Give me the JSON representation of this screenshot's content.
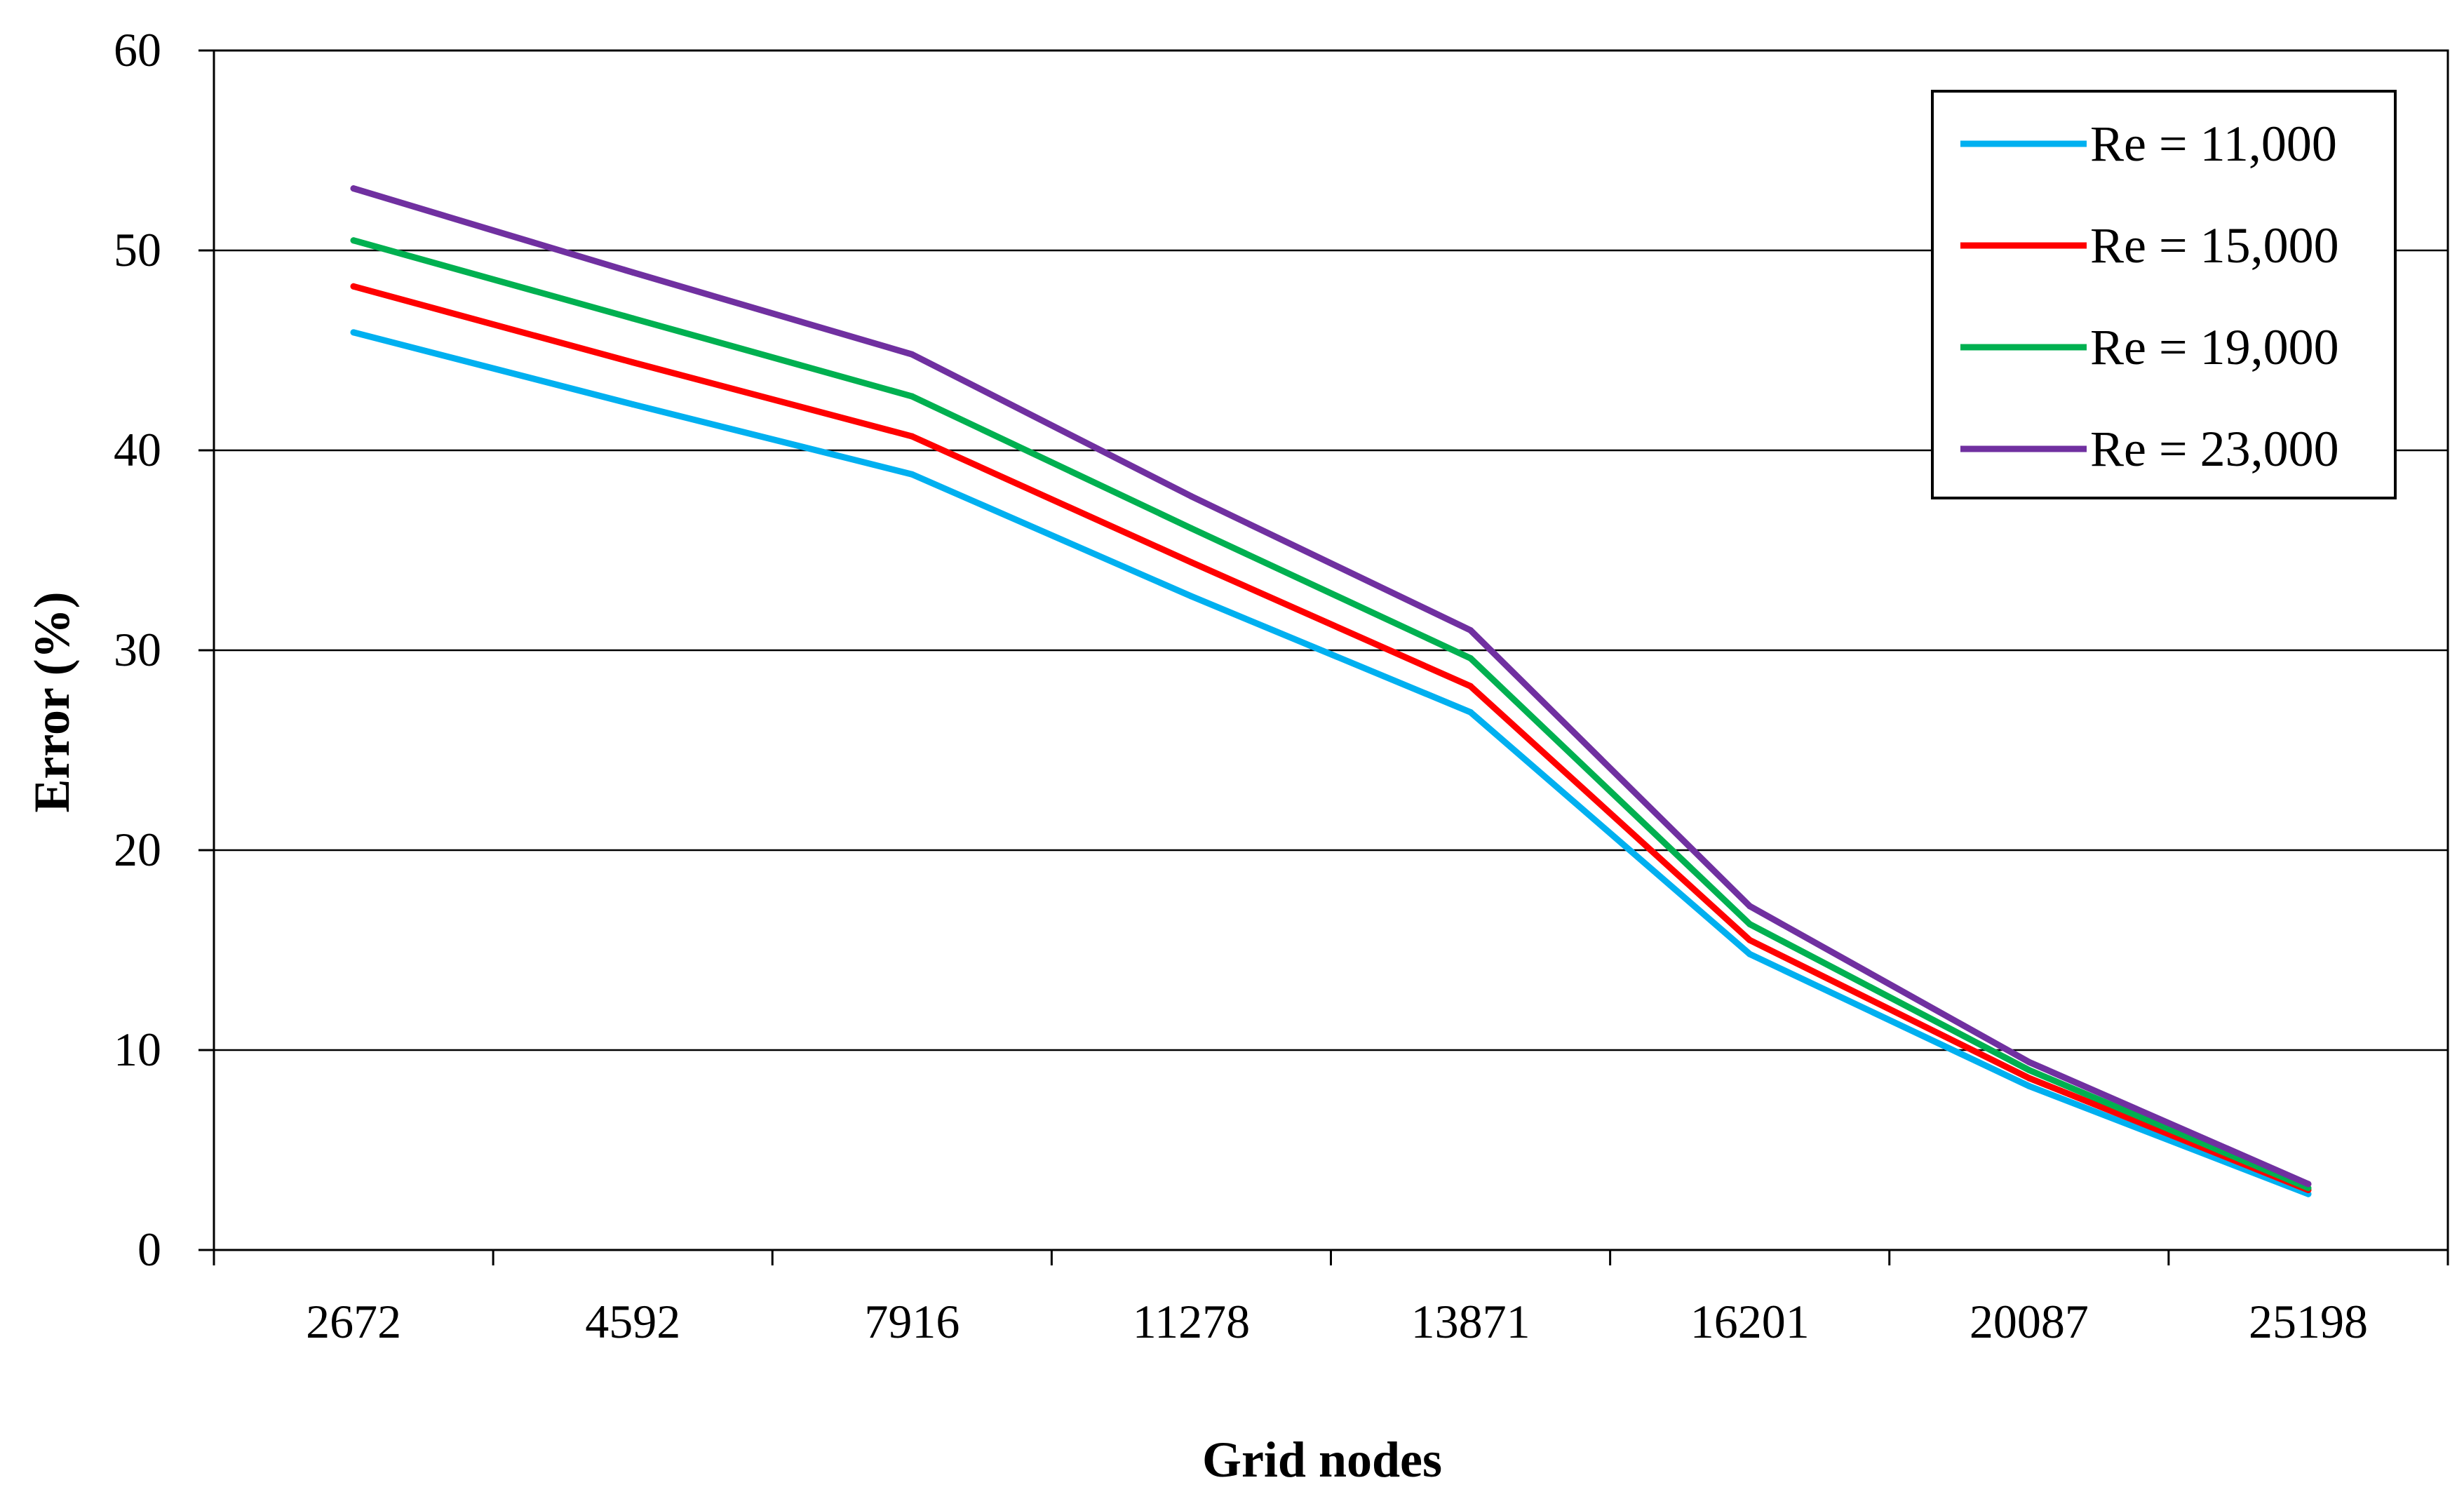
{
  "chart_data": {
    "type": "line",
    "xlabel": "Grid nodes",
    "ylabel": "Error (%)",
    "categories": [
      "2672",
      "4592",
      "7916",
      "11278",
      "13871",
      "16201",
      "20087",
      "25198"
    ],
    "ylim": [
      0,
      60
    ],
    "yticks": [
      0,
      10,
      20,
      30,
      40,
      50,
      60
    ],
    "grid": "horizontal",
    "legend_position": "top-right",
    "series": [
      {
        "name": "Re = 11,000",
        "color": "#00B0F0",
        "values": [
          45.9,
          42.3,
          38.8,
          32.7,
          26.9,
          14.8,
          8.2,
          2.8
        ]
      },
      {
        "name": "Re = 15,000",
        "color": "#FF0000",
        "values": [
          48.2,
          44.4,
          40.7,
          34.4,
          28.2,
          15.5,
          8.6,
          3.0
        ]
      },
      {
        "name": "Re = 19,000",
        "color": "#00B050",
        "values": [
          50.5,
          46.6,
          42.7,
          36.1,
          29.6,
          16.3,
          9.0,
          3.1
        ]
      },
      {
        "name": "Re = 23,000",
        "color": "#7030A0",
        "values": [
          53.1,
          48.9,
          44.8,
          37.7,
          31.0,
          17.2,
          9.4,
          3.3
        ]
      }
    ]
  }
}
